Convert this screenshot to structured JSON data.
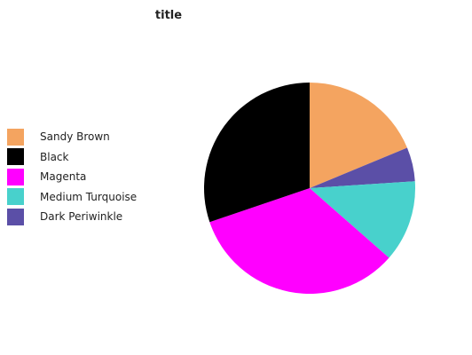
{
  "chart_data": {
    "type": "pie",
    "title": "title",
    "categories": [
      "Sandy Brown",
      "Black",
      "Magenta",
      "Medium Turquoise",
      "Dark Periwinkle"
    ],
    "values": [
      18,
      29,
      32,
      12,
      5
    ],
    "colors": [
      "#f4a460",
      "#000000",
      "#ff00ff",
      "#48d1cc",
      "#5b4fa7"
    ],
    "legend_position": "left",
    "slice_order": [
      "Sandy Brown",
      "Dark Periwinkle",
      "Medium Turquoise",
      "Magenta",
      "Black"
    ]
  }
}
